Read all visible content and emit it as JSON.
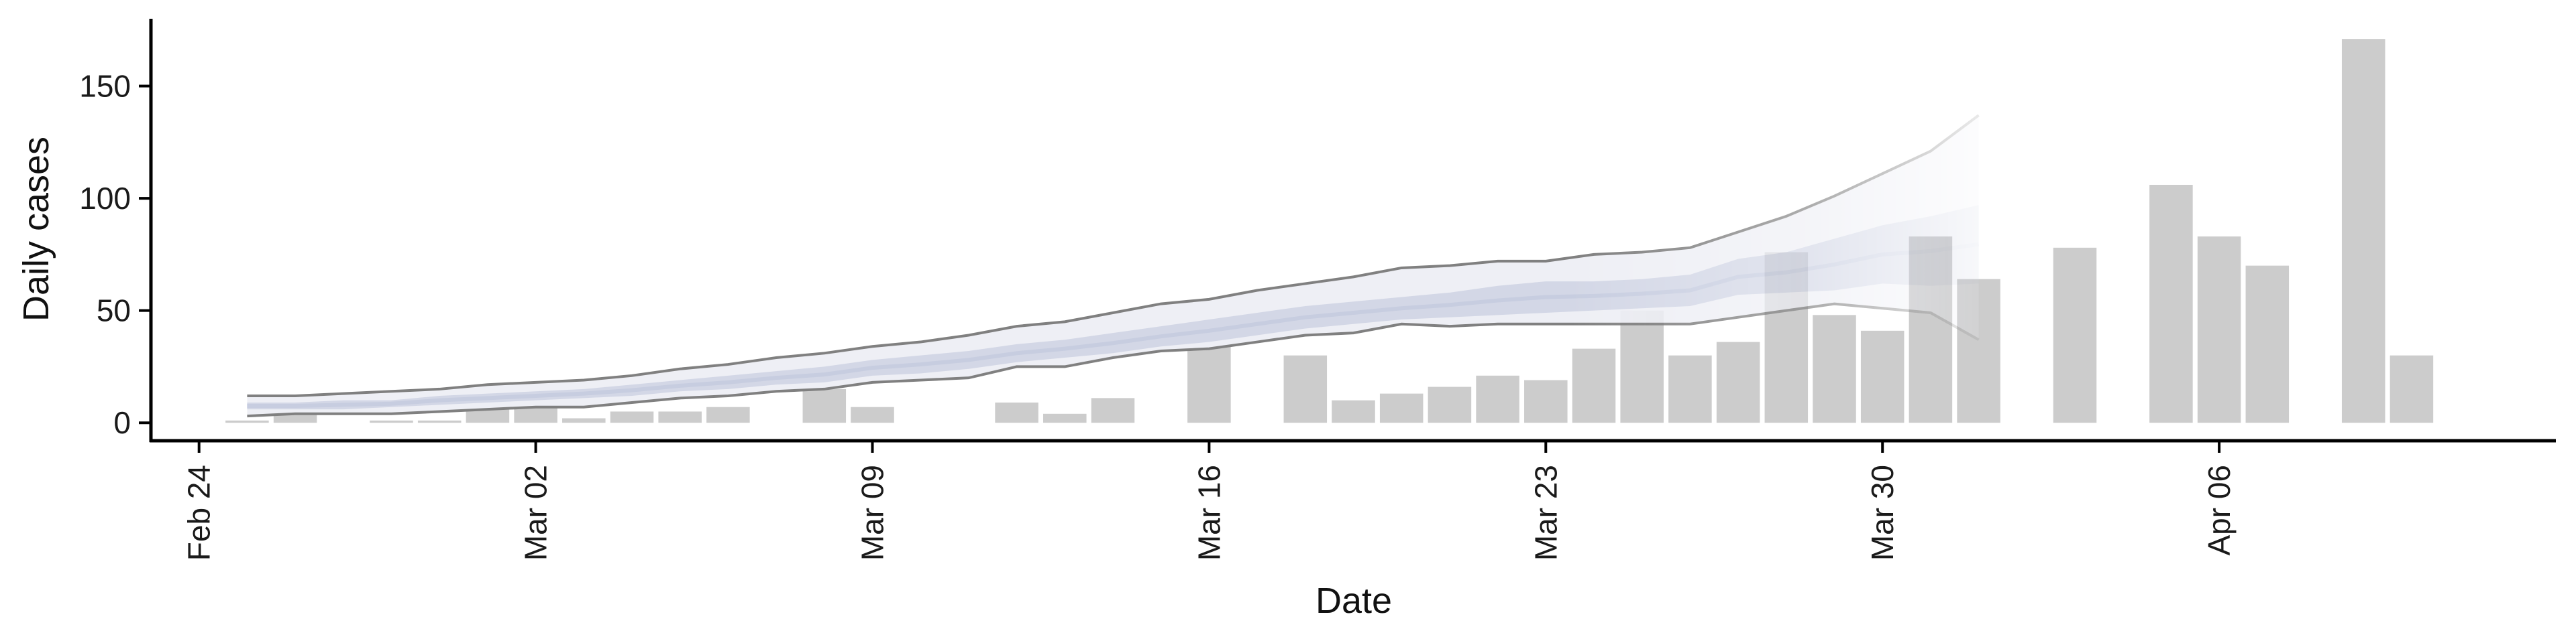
{
  "chart_data": {
    "type": "bar",
    "title": "",
    "xlabel": "Date",
    "ylabel": "Daily cases",
    "x_axis": "date",
    "ylim": [
      -8,
      180
    ],
    "xlim": [
      "2020-02-23",
      "2020-04-13"
    ],
    "grid": false,
    "legend": "none",
    "x_ticks": [
      {
        "date": "2020-02-24",
        "label": "Feb 24"
      },
      {
        "date": "2020-03-02",
        "label": "Mar 02"
      },
      {
        "date": "2020-03-09",
        "label": "Mar 09"
      },
      {
        "date": "2020-03-16",
        "label": "Mar 16"
      },
      {
        "date": "2020-03-23",
        "label": "Mar 23"
      },
      {
        "date": "2020-03-30",
        "label": "Mar 30"
      },
      {
        "date": "2020-04-06",
        "label": "Apr 06"
      }
    ],
    "y_ticks": [
      0,
      50,
      100,
      150
    ],
    "bars": [
      {
        "date": "2020-02-25",
        "value": 1
      },
      {
        "date": "2020-02-26",
        "value": 4
      },
      {
        "date": "2020-02-28",
        "value": 1
      },
      {
        "date": "2020-02-29",
        "value": 1
      },
      {
        "date": "2020-03-01",
        "value": 6
      },
      {
        "date": "2020-03-02",
        "value": 7
      },
      {
        "date": "2020-03-03",
        "value": 2
      },
      {
        "date": "2020-03-04",
        "value": 5
      },
      {
        "date": "2020-03-05",
        "value": 5
      },
      {
        "date": "2020-03-06",
        "value": 7
      },
      {
        "date": "2020-03-08",
        "value": 15
      },
      {
        "date": "2020-03-09",
        "value": 7
      },
      {
        "date": "2020-03-12",
        "value": 9
      },
      {
        "date": "2020-03-13",
        "value": 4
      },
      {
        "date": "2020-03-14",
        "value": 11
      },
      {
        "date": "2020-03-16",
        "value": 39
      },
      {
        "date": "2020-03-18",
        "value": 30
      },
      {
        "date": "2020-03-19",
        "value": 10
      },
      {
        "date": "2020-03-20",
        "value": 13
      },
      {
        "date": "2020-03-21",
        "value": 16
      },
      {
        "date": "2020-03-22",
        "value": 21
      },
      {
        "date": "2020-03-23",
        "value": 19
      },
      {
        "date": "2020-03-24",
        "value": 33
      },
      {
        "date": "2020-03-25",
        "value": 50
      },
      {
        "date": "2020-03-26",
        "value": 30
      },
      {
        "date": "2020-03-27",
        "value": 36
      },
      {
        "date": "2020-03-28",
        "value": 76
      },
      {
        "date": "2020-03-29",
        "value": 48
      },
      {
        "date": "2020-03-30",
        "value": 41
      },
      {
        "date": "2020-03-31",
        "value": 83
      },
      {
        "date": "2020-04-01",
        "value": 64
      },
      {
        "date": "2020-04-03",
        "value": 78
      },
      {
        "date": "2020-04-05",
        "value": 106
      },
      {
        "date": "2020-04-06",
        "value": 83
      },
      {
        "date": "2020-04-07",
        "value": 70
      },
      {
        "date": "2020-04-09",
        "value": 171
      },
      {
        "date": "2020-04-10",
        "value": 30
      }
    ],
    "band": {
      "dates": [
        "2020-02-25",
        "2020-02-26",
        "2020-02-27",
        "2020-02-28",
        "2020-02-29",
        "2020-03-01",
        "2020-03-02",
        "2020-03-03",
        "2020-03-04",
        "2020-03-05",
        "2020-03-06",
        "2020-03-07",
        "2020-03-08",
        "2020-03-09",
        "2020-03-10",
        "2020-03-11",
        "2020-03-12",
        "2020-03-13",
        "2020-03-14",
        "2020-03-15",
        "2020-03-16",
        "2020-03-17",
        "2020-03-18",
        "2020-03-19",
        "2020-03-20",
        "2020-03-21",
        "2020-03-22",
        "2020-03-23",
        "2020-03-24",
        "2020-03-25",
        "2020-03-26",
        "2020-03-27",
        "2020-03-28",
        "2020-03-29",
        "2020-03-30",
        "2020-03-31",
        "2020-04-01"
      ],
      "outer_upper": [
        12,
        12,
        13,
        14,
        15,
        17,
        18,
        19,
        21,
        24,
        26,
        29,
        31,
        34,
        36,
        39,
        43,
        45,
        49,
        53,
        55,
        59,
        62,
        65,
        69,
        70,
        72,
        72,
        75,
        76,
        78,
        85,
        92,
        101,
        111,
        121,
        137
      ],
      "outer_lower": [
        3,
        4,
        4,
        4,
        5,
        6,
        7,
        7,
        9,
        11,
        12,
        14,
        15,
        18,
        19,
        20,
        25,
        25,
        29,
        32,
        33,
        36,
        39,
        40,
        44,
        43,
        44,
        44,
        44,
        44,
        44,
        47,
        50,
        53,
        51,
        49,
        37
      ],
      "inner_upper": [
        9,
        9,
        10,
        10,
        12,
        13,
        14,
        15,
        17,
        19,
        21,
        23,
        25,
        28,
        30,
        32,
        35,
        37,
        40,
        43,
        46,
        49,
        52,
        54,
        56,
        58,
        61,
        63,
        63,
        64,
        66,
        73,
        76,
        82,
        88,
        92,
        97
      ],
      "inner_lower": [
        6,
        6,
        6,
        7,
        8,
        9,
        10,
        11,
        12,
        14,
        15,
        17,
        18,
        21,
        22,
        24,
        27,
        29,
        31,
        34,
        36,
        39,
        42,
        44,
        46,
        47,
        48,
        49,
        50,
        51,
        52,
        57,
        58,
        59,
        62,
        61,
        62
      ],
      "median": [
        7.5,
        7.5,
        8,
        8.5,
        10,
        11,
        12,
        13,
        14.5,
        16.5,
        18,
        20,
        21.5,
        24.5,
        26,
        28,
        31,
        33,
        35.5,
        38.5,
        41,
        44,
        47,
        49,
        51,
        52.5,
        54.5,
        56,
        56.5,
        57.5,
        59,
        65,
        67,
        70.5,
        75,
        76.5,
        79.5
      ]
    },
    "colors": {
      "bar": "#cccccc",
      "band_outer": "#eeeff5",
      "band_inner": "#c7cde0",
      "upper_line": "#808080",
      "lower_line": "#808080",
      "axis": "#000000"
    }
  }
}
